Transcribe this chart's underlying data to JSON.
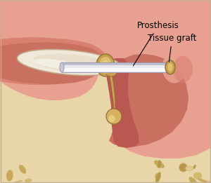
{
  "bg_color": "#e8d5a8",
  "bone_texture_colors": [
    "#d4b870",
    "#c8a858",
    "#e0c890",
    "#b89848"
  ],
  "bone_texture_edge": "#c8b878",
  "ear_pink_light": "#e8a090",
  "ear_pink_mid": "#d98070",
  "ear_pink_dark": "#c97060",
  "ear_cavity_dark": "#b85850",
  "drum_color": "#f0e8d8",
  "drum_highlight": "#ffffff",
  "drum_edge": "#c0a888",
  "prosthesis_body": "#e8e8f0",
  "prosthesis_highlight": "#ffffff",
  "prosthesis_shadow": "#9898b0",
  "prosthesis_edge": "#a0a0b8",
  "graft_color": "#c8a050",
  "graft_dark": "#907030",
  "graft_light": "#e0c070",
  "ossicle_color": "#c8a050",
  "ossicle_dark": "#906830",
  "label_color": "#000000",
  "label_prosthesis": "Prosthesis",
  "label_tissue": "Tissue graft",
  "figsize": [
    3.0,
    2.61
  ],
  "dpi": 100
}
